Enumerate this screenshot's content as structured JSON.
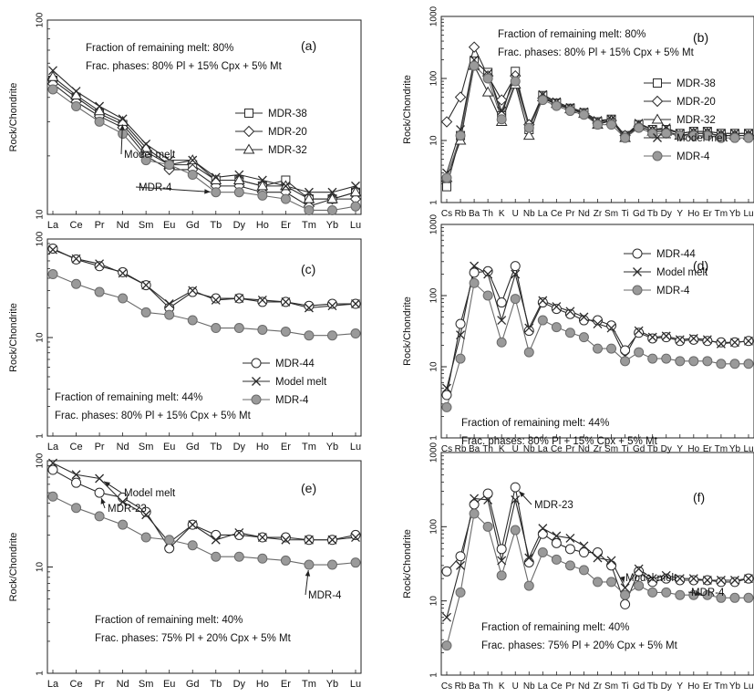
{
  "figure": {
    "colors": {
      "open_fill": "#ffffff",
      "grey_fill": "#9a9a9a",
      "line_dark": "#2b2b2b",
      "line_grey": "#6a6a6a"
    },
    "markers": {
      "square": "square",
      "diamond": "diamond",
      "triangle": "triangle",
      "cross": "cross",
      "circle": "circle",
      "grey_circle": "filled-circle"
    }
  },
  "chart_data": [
    {
      "panel": "(a)",
      "type": "line",
      "ylabel": "Rock/Chondrite",
      "yscale": "log",
      "ylim": [
        10,
        100
      ],
      "yticks": [
        "10",
        "100"
      ],
      "categories": [
        "La",
        "Ce",
        "Pr",
        "Nd",
        "Sm",
        "Eu",
        "Gd",
        "Tb",
        "Dy",
        "Ho",
        "Er",
        "Tm",
        "Yb",
        "Lu"
      ],
      "notes": [
        "Fraction of remaining melt: 80%",
        "Frac. phases: 80% Pl + 15% Cpx + 5% Mt"
      ],
      "callouts": [
        {
          "text": "Model melt",
          "series": 3,
          "cat": 3
        },
        {
          "text": "MDR-4",
          "series": 4,
          "cat": 7
        }
      ],
      "legend": [
        {
          "name": "MDR-38",
          "series": 0
        },
        {
          "name": "MDR-20",
          "series": 1
        },
        {
          "name": "MDR-32",
          "series": 2
        }
      ],
      "series": [
        {
          "name": "MDR-38",
          "marker": "square",
          "values": [
            49,
            40,
            33,
            29,
            21,
            18,
            18,
            15,
            15,
            14,
            15,
            12,
            12,
            13
          ]
        },
        {
          "name": "MDR-20",
          "marker": "diamond",
          "values": [
            47,
            38,
            32,
            28,
            20,
            17,
            17,
            14,
            14,
            13,
            13,
            11,
            12,
            12
          ]
        },
        {
          "name": "MDR-32",
          "marker": "triangle",
          "values": [
            51,
            41,
            34,
            30,
            22,
            18,
            19,
            15,
            15,
            14,
            14,
            12,
            12,
            13
          ]
        },
        {
          "name": "Model melt",
          "marker": "cross",
          "values": [
            55,
            43,
            36,
            31,
            23,
            19,
            19,
            15.5,
            16,
            15,
            14,
            13,
            13,
            14
          ]
        },
        {
          "name": "MDR-4",
          "marker": "grey_circle",
          "values": [
            44,
            36,
            30,
            26,
            19,
            18,
            16,
            13,
            13,
            12.5,
            12,
            10.5,
            10.5,
            11
          ]
        }
      ]
    },
    {
      "panel": "(b)",
      "type": "line",
      "ylabel": "Rock/Chondrite",
      "yscale": "log",
      "ylim": [
        1,
        1000
      ],
      "yticks": [
        "1",
        "10",
        "100",
        "1000"
      ],
      "categories": [
        "Cs",
        "Rb",
        "Ba",
        "Th",
        "K",
        "U",
        "Nb",
        "La",
        "Ce",
        "Pr",
        "Nd",
        "Zr",
        "Sm",
        "Ti",
        "Gd",
        "Tb",
        "Dy",
        "Y",
        "Ho",
        "Er",
        "Tm",
        "Yb",
        "Lu"
      ],
      "notes": [
        "Fraction of remaining melt: 80%",
        "Frac. phases: 80% Pl + 15% Cpx + 5% Mt"
      ],
      "callouts": [],
      "legend": [
        {
          "name": "MDR-38",
          "series": 0
        },
        {
          "name": "MDR-20",
          "series": 1
        },
        {
          "name": "MDR-32",
          "series": 2
        },
        {
          "name": "Model melt",
          "series": 3
        },
        {
          "name": "MDR-4",
          "series": 4
        }
      ],
      "series": [
        {
          "name": "MDR-38",
          "marker": "square",
          "values": [
            1.8,
            12,
            190,
            125,
            25,
            130,
            15,
            53,
            40,
            33,
            28,
            20,
            22,
            12,
            18,
            15,
            15,
            13,
            14,
            14,
            13,
            13,
            13
          ]
        },
        {
          "name": "MDR-20",
          "marker": "diamond",
          "values": [
            20,
            50,
            320,
            110,
            45,
            110,
            18,
            48,
            38,
            32,
            27,
            19,
            21,
            12,
            17,
            14,
            14,
            12,
            13,
            13,
            12,
            12,
            12
          ]
        },
        {
          "name": "MDR-32",
          "marker": "triangle",
          "values": [
            2.5,
            10,
            160,
            60,
            20,
            80,
            12,
            50,
            39,
            32,
            27,
            18,
            21,
            11,
            17,
            14,
            14,
            12,
            13,
            13,
            12,
            12,
            12
          ]
        },
        {
          "name": "Model melt",
          "marker": "cross",
          "values": [
            3,
            15,
            200,
            120,
            30,
            100,
            17,
            55,
            42,
            34,
            29,
            21,
            22,
            12,
            19,
            15,
            16,
            13,
            14,
            14,
            13,
            13,
            13
          ]
        },
        {
          "name": "MDR-4",
          "marker": "grey_circle",
          "values": [
            2.5,
            12,
            160,
            100,
            22,
            90,
            16,
            45,
            36,
            30,
            26,
            18,
            18,
            11,
            16,
            13,
            13,
            12,
            12,
            12,
            11,
            11,
            11
          ]
        }
      ]
    },
    {
      "panel": "(c)",
      "type": "line",
      "ylabel": "Rock/Chondrite",
      "yscale": "log",
      "ylim": [
        1,
        100
      ],
      "yticks": [
        "1",
        "10",
        "100"
      ],
      "categories": [
        "La",
        "Ce",
        "Pr",
        "Nd",
        "Sm",
        "Eu",
        "Gd",
        "Tb",
        "Dy",
        "Ho",
        "Er",
        "Tm",
        "Yb",
        "Lu"
      ],
      "notes": [
        "Fraction of remaining melt: 44%",
        "Frac. phases: 80% Pl + 15% Cpx + 5% Mt"
      ],
      "callouts": [],
      "legend": [
        {
          "name": "MDR-44",
          "series": 0
        },
        {
          "name": "Model melt",
          "series": 1
        },
        {
          "name": "MDR-4",
          "series": 2
        }
      ],
      "series": [
        {
          "name": "MDR-44",
          "marker": "circle",
          "values": [
            80,
            62,
            53,
            46,
            34,
            20,
            29,
            25,
            25,
            23,
            23,
            21,
            22,
            22
          ]
        },
        {
          "name": "Model melt",
          "marker": "cross",
          "values": [
            78,
            63,
            56,
            45,
            34,
            22,
            30,
            24,
            25,
            24,
            23,
            20,
            21,
            22
          ]
        },
        {
          "name": "MDR-4",
          "marker": "grey_circle",
          "values": [
            44,
            35,
            29,
            25,
            18,
            17,
            15,
            12.5,
            12.5,
            12,
            11.5,
            10.5,
            10.5,
            11
          ]
        }
      ]
    },
    {
      "panel": "(d)",
      "type": "line",
      "ylabel": "Rock/Chondrite",
      "yscale": "log",
      "ylim": [
        1,
        1000
      ],
      "yticks": [
        "1",
        "10",
        "100",
        "1000"
      ],
      "categories": [
        "Cs",
        "Rb",
        "Ba",
        "Th",
        "K",
        "U",
        "Nb",
        "La",
        "Ce",
        "Pr",
        "Nd",
        "Zr",
        "Sm",
        "Ti",
        "Gd",
        "Tb",
        "Dy",
        "Y",
        "Ho",
        "Er",
        "Tm",
        "Yb",
        "Lu"
      ],
      "notes": [
        "Fraction of remaining melt: 44%",
        "Frac. phases: 80% Pl + 15% Cpx + 5% Mt"
      ],
      "callouts": [],
      "legend": [
        {
          "name": "MDR-44",
          "series": 0
        },
        {
          "name": "Model melt",
          "series": 1
        },
        {
          "name": "MDR-4",
          "series": 2
        }
      ],
      "series": [
        {
          "name": "MDR-44",
          "marker": "circle",
          "values": [
            4,
            40,
            210,
            220,
            80,
            260,
            32,
            80,
            65,
            55,
            45,
            45,
            38,
            17,
            30,
            25,
            26,
            23,
            24,
            23,
            22,
            22,
            23
          ]
        },
        {
          "name": "Model melt",
          "marker": "cross",
          "values": [
            5,
            28,
            260,
            200,
            45,
            200,
            35,
            85,
            70,
            60,
            50,
            40,
            35,
            14,
            32,
            26,
            27,
            24,
            25,
            24,
            21,
            22,
            23
          ]
        },
        {
          "name": "MDR-4",
          "marker": "grey_circle",
          "values": [
            2.7,
            13,
            150,
            100,
            22,
            90,
            16,
            45,
            36,
            30,
            26,
            18,
            18,
            12,
            16,
            13,
            13,
            12,
            12,
            12,
            11,
            11,
            11
          ]
        }
      ]
    },
    {
      "panel": "(e)",
      "type": "line",
      "ylabel": "Rock/Chondrite",
      "yscale": "log",
      "ylim": [
        1,
        100
      ],
      "yticks": [
        "1",
        "10",
        "100"
      ],
      "categories": [
        "La",
        "Ce",
        "Pr",
        "Nd",
        "Sm",
        "Eu",
        "Gd",
        "Tb",
        "Dy",
        "Ho",
        "Er",
        "Tm",
        "Yb",
        "Lu"
      ],
      "notes": [
        "Fraction of remaining melt: 40%",
        "Frac. phases: 75% Pl + 20% Cpx + 5% Mt"
      ],
      "callouts": [
        {
          "text": "Model melt",
          "series": 1,
          "cat": 2
        },
        {
          "text": "MDR-23",
          "series": 0,
          "cat": 2
        },
        {
          "text": "MDR-4",
          "series": 2,
          "cat": 11
        }
      ],
      "legend": [],
      "series": [
        {
          "name": "MDR-23",
          "marker": "circle",
          "values": [
            82,
            62,
            50,
            45,
            33,
            15,
            25,
            20,
            20,
            19,
            19,
            18,
            18,
            20
          ]
        },
        {
          "name": "Model melt",
          "marker": "cross",
          "values": [
            95,
            74,
            68,
            41,
            31,
            17,
            25,
            18,
            21,
            19,
            18,
            18,
            18,
            19
          ]
        },
        {
          "name": "MDR-4",
          "marker": "grey_circle",
          "values": [
            46,
            36,
            30,
            25,
            19,
            18,
            16,
            12.5,
            12.5,
            12,
            11.5,
            10.5,
            10.5,
            11
          ]
        }
      ]
    },
    {
      "panel": "(f)",
      "type": "line",
      "ylabel": "Rock/Chondrite",
      "yscale": "log",
      "ylim": [
        1,
        1000
      ],
      "yticks": [
        "1",
        "10",
        "100",
        "1000"
      ],
      "categories": [
        "Cs",
        "Rb",
        "Ba",
        "Th",
        "K",
        "U",
        "Nb",
        "La",
        "Ce",
        "Pr",
        "Nd",
        "Zr",
        "Sm",
        "Ti",
        "Gd",
        "Tb",
        "Dy",
        "Y",
        "Ho",
        "Er",
        "Tm",
        "Yb",
        "Lu"
      ],
      "notes": [
        "Fraction of remaining melt: 40%",
        "Frac. phases: 75% Pl + 20% Cpx + 5% Mt"
      ],
      "callouts": [
        {
          "text": "MDR-23",
          "series": 0,
          "cat": 5
        },
        {
          "text": "Model melt",
          "series": 1,
          "cat": 13
        },
        {
          "text": "MDR-4",
          "series": 2,
          "cat": 19
        }
      ],
      "legend": [],
      "series": [
        {
          "name": "MDR-23",
          "marker": "circle",
          "values": [
            25,
            40,
            200,
            280,
            50,
            340,
            33,
            80,
            60,
            50,
            45,
            45,
            30,
            9,
            25,
            18,
            20,
            19,
            19,
            19,
            18,
            18,
            20
          ]
        },
        {
          "name": "Model melt",
          "marker": "cross",
          "values": [
            6,
            30,
            240,
            230,
            35,
            230,
            38,
            95,
            75,
            70,
            55,
            38,
            35,
            15,
            27,
            20,
            22,
            20,
            20,
            19,
            19,
            19,
            20
          ]
        },
        {
          "name": "MDR-4",
          "marker": "grey_circle",
          "values": [
            2.5,
            13,
            150,
            100,
            22,
            90,
            16,
            45,
            36,
            30,
            26,
            18,
            18,
            12,
            16,
            13,
            13,
            12,
            12,
            12,
            11,
            11,
            11
          ]
        }
      ]
    }
  ]
}
